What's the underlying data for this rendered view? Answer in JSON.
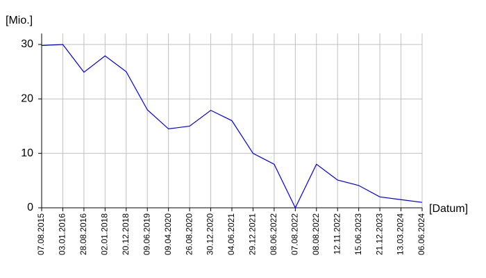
{
  "chart_data": {
    "type": "line",
    "y_label": "[Mio.]",
    "x_label": "[Datum]",
    "categories": [
      "07.08.2015",
      "03.01.2016",
      "28.08.2016",
      "02.01.2018",
      "20.12.2018",
      "09.06.2019",
      "09.04.2020",
      "26.08.2020",
      "30.12.2020",
      "04.06.2021",
      "29.12.2021",
      "08.06.2022",
      "07.08.2022",
      "08.08.2022",
      "12.11.2022",
      "15.06.2023",
      "21.12.2023",
      "13.03.2024",
      "06.06.2024"
    ],
    "series": [
      {
        "color": "#0000dd",
        "values": [
          29.8,
          30,
          24.9,
          27.9,
          25,
          18,
          14.5,
          15,
          17.9,
          16,
          10,
          8,
          0,
          8,
          5.1,
          4.1,
          2,
          1.5,
          1
        ]
      }
    ],
    "ylim": [
      0,
      32
    ],
    "yticks": [
      0,
      10,
      20,
      30
    ],
    "grid": true
  }
}
